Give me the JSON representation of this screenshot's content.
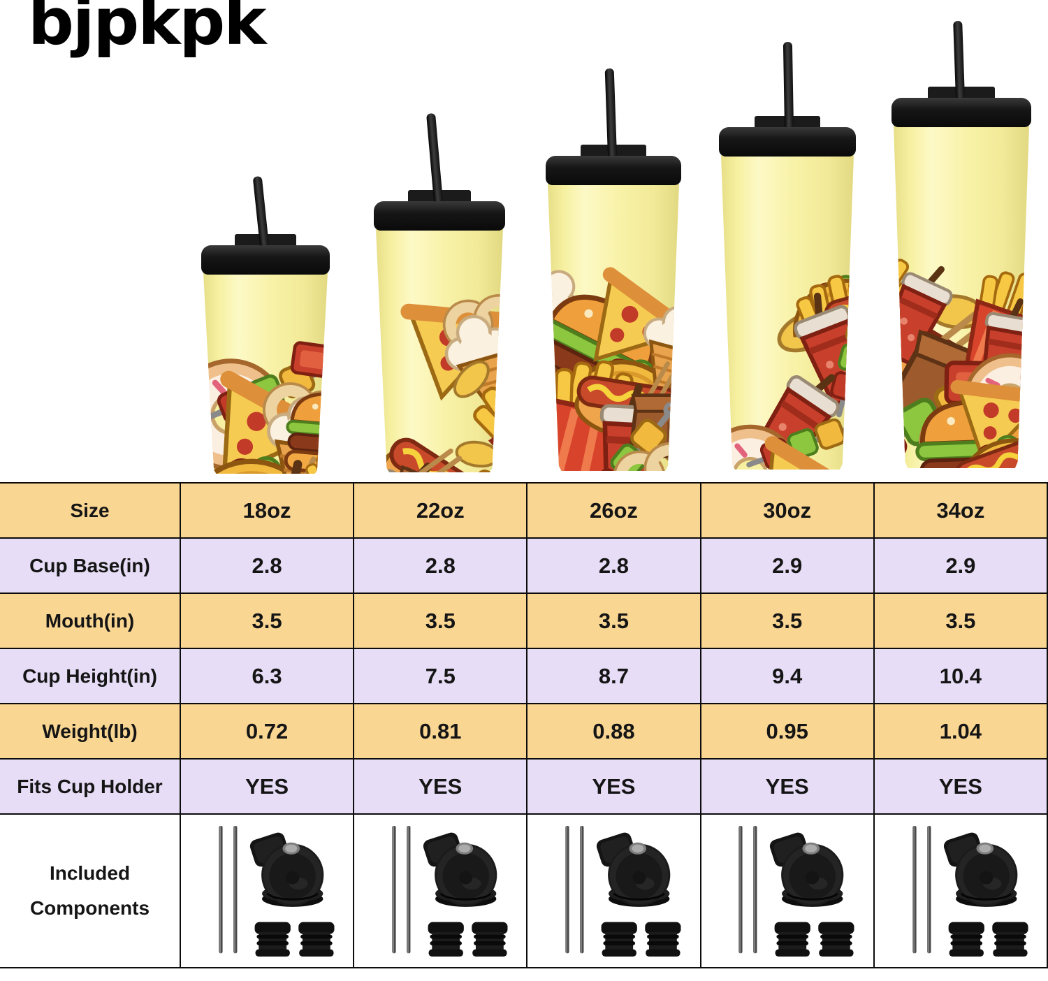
{
  "brand": {
    "logo_text": "bjpkpk"
  },
  "colors": {
    "page_bg": "#ffffff",
    "row_peach": "#FAD693",
    "row_lavender": "#E7DDF6",
    "table_border": "#0c0c0c",
    "tumbler_yellow": "#F6F0A0",
    "lid_black": "#161616"
  },
  "tumblers": {
    "sizes": [
      "18oz",
      "22oz",
      "26oz",
      "30oz",
      "34oz"
    ],
    "pattern_theme": "fast-food print on pale yellow tumbler with black lid and straw",
    "pattern_items": [
      "burger",
      "fries",
      "donut",
      "taco",
      "soda-cup",
      "pizza-slice",
      "hot-dog",
      "kebab-skewer",
      "ice-cream-cone",
      "takeout-box",
      "onion-rings",
      "chip",
      "sauce-packet"
    ]
  },
  "table": {
    "rows": [
      {
        "label": "Size",
        "values": [
          "18oz",
          "22oz",
          "26oz",
          "30oz",
          "34oz"
        ]
      },
      {
        "label": "Cup Base(in)",
        "values": [
          "2.8",
          "2.8",
          "2.8",
          "2.9",
          "2.9"
        ]
      },
      {
        "label": "Mouth(in)",
        "values": [
          "3.5",
          "3.5",
          "3.5",
          "3.5",
          "3.5"
        ]
      },
      {
        "label": "Cup Height(in)",
        "values": [
          "6.3",
          "7.5",
          "8.7",
          "9.4",
          "10.4"
        ]
      },
      {
        "label": "Weight(lb)",
        "values": [
          "0.72",
          "0.81",
          "0.88",
          "0.95",
          "1.04"
        ]
      },
      {
        "label": "Fits Cup Holder",
        "values": [
          "YES",
          "YES",
          "YES",
          "YES",
          "YES"
        ]
      }
    ],
    "included": {
      "label_lines": [
        "Included",
        "Components"
      ],
      "components": [
        "metal straw x2",
        "flip-top lid",
        "straw stopper x2"
      ]
    }
  }
}
